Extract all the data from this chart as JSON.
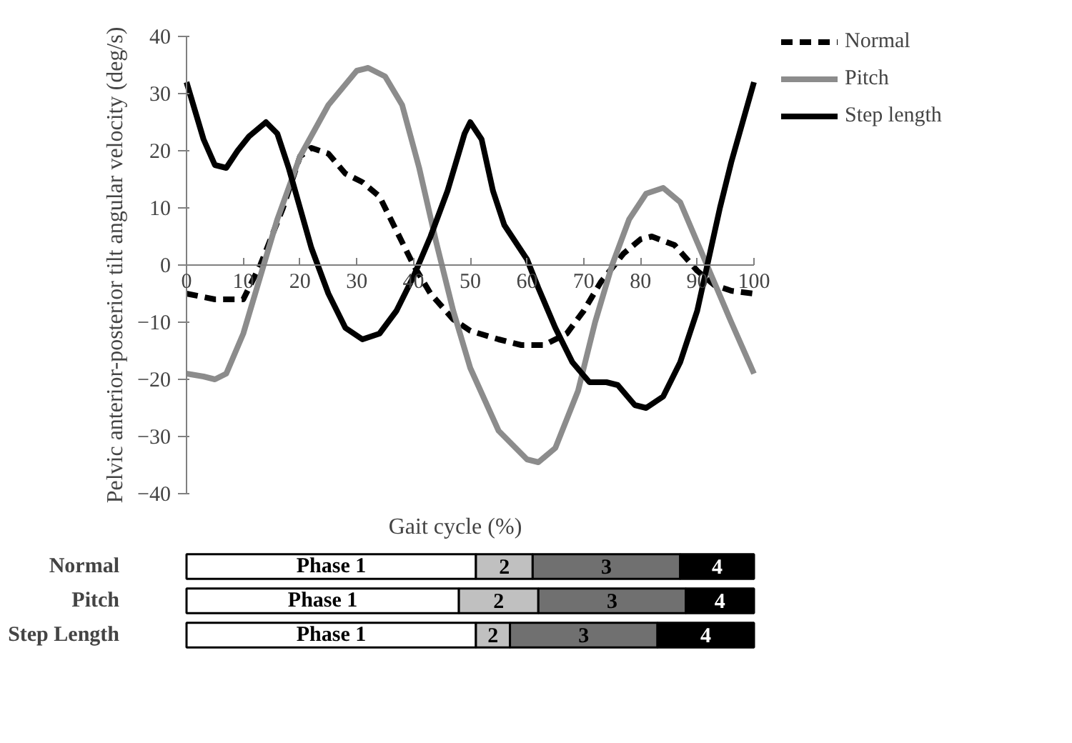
{
  "chart_data": [
    {
      "type": "line",
      "xlabel": "Gait cycle (%)",
      "ylabel": "Pelvic anterior-posterior tilt angular velocity (deg/s)",
      "xlim": [
        0,
        100
      ],
      "ylim": [
        -40,
        40
      ],
      "xticks": [
        0,
        10,
        20,
        30,
        40,
        50,
        60,
        70,
        80,
        90,
        100
      ],
      "yticks": [
        -40,
        -30,
        -20,
        -10,
        0,
        10,
        20,
        30,
        40
      ],
      "grid": false,
      "legend": "top right",
      "marker": "none",
      "series": [
        {
          "name": "Normal",
          "color": "#000000",
          "line_style": "dashed",
          "x": [
            0,
            5,
            10,
            13,
            17,
            20,
            22,
            25,
            28,
            31,
            34,
            37,
            40,
            43,
            47,
            50,
            55,
            59,
            63,
            67,
            70,
            73,
            77,
            80,
            82,
            86,
            90,
            93,
            96,
            100
          ],
          "values": [
            -5,
            -6,
            -6,
            0,
            10,
            19,
            20.5,
            19.5,
            16,
            14.5,
            12,
            6,
            0,
            -5,
            -9.5,
            -11.5,
            -13,
            -14,
            -14,
            -12,
            -8,
            -3,
            2,
            4.5,
            5,
            3.5,
            -1,
            -3.5,
            -4.5,
            -5
          ]
        },
        {
          "name": "Pitch",
          "color": "#8c8c8c",
          "line_style": "solid",
          "x": [
            0,
            3,
            5,
            7,
            10,
            13,
            16,
            20,
            25,
            30,
            32,
            35,
            38,
            41,
            44,
            47,
            50,
            55,
            60,
            62,
            65,
            69,
            72,
            75,
            78,
            81,
            84,
            87,
            90,
            93,
            96,
            100
          ],
          "values": [
            -19,
            -19.5,
            -20,
            -19,
            -12,
            -2,
            8,
            19,
            28,
            34,
            34.5,
            33,
            28,
            17,
            4,
            -8,
            -18,
            -29,
            -34,
            -34.5,
            -32,
            -22,
            -10,
            0,
            8,
            12.5,
            13.5,
            11,
            4,
            -3,
            -10,
            -19
          ]
        },
        {
          "name": "Step length",
          "color": "#000000",
          "line_style": "solid",
          "x": [
            0,
            3,
            5,
            7,
            9,
            11,
            14,
            16,
            18,
            20,
            22,
            25,
            28,
            31,
            34,
            37,
            40,
            43,
            46,
            49,
            50,
            52,
            54,
            56,
            58,
            60,
            62,
            65,
            68,
            71,
            74,
            76,
            79,
            81,
            84,
            87,
            90,
            92,
            94,
            96,
            98,
            100
          ],
          "values": [
            32,
            22,
            17.5,
            17,
            20,
            22.5,
            25,
            23,
            17,
            10,
            3,
            -5,
            -11,
            -13,
            -12,
            -8,
            -2,
            5,
            13,
            23,
            25,
            22,
            13,
            7,
            4,
            1,
            -4,
            -11,
            -17,
            -20.5,
            -20.5,
            -21,
            -24.5,
            -25,
            -23,
            -17,
            -8,
            1,
            10,
            18,
            25,
            32
          ]
        }
      ]
    },
    {
      "type": "bar",
      "orientation": "horizontal",
      "stacked": true,
      "categories": [
        "Normal",
        "Pitch",
        "Step Length"
      ],
      "xlim": [
        0,
        100
      ],
      "tick_labels": "y",
      "legend": false,
      "series": [
        {
          "name": "Phase 1",
          "color": "#ffffff",
          "values": [
            51,
            48,
            51
          ]
        },
        {
          "name": "2",
          "color": "#c0c0c0",
          "values": [
            10,
            14,
            6
          ]
        },
        {
          "name": "3",
          "color": "#707070",
          "values": [
            26,
            26,
            26
          ]
        },
        {
          "name": "4",
          "color": "#000000",
          "values": [
            13,
            12,
            17
          ]
        }
      ]
    }
  ]
}
